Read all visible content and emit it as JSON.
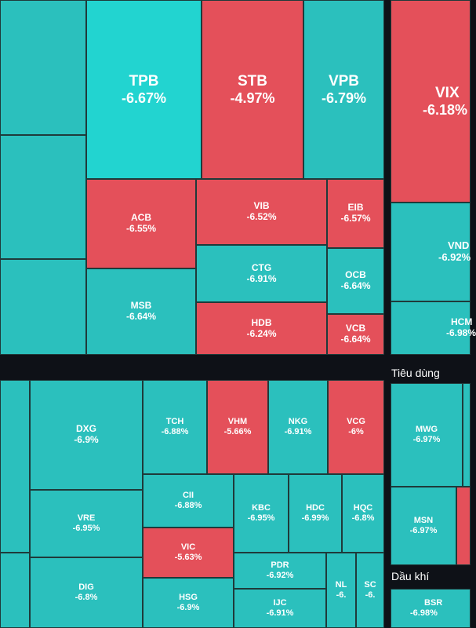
{
  "chart_data": {
    "type": "heatmap",
    "colors": {
      "down": "#e4505a",
      "floor": "#2bc0bd",
      "floor_highlight": "#22d4d0",
      "background": "#0e1117"
    },
    "sectors": [
      {
        "name": "",
        "tiles": [
          {
            "symbol": "TPB",
            "change": "-6.67%",
            "value": -6.67
          },
          {
            "symbol": "STB",
            "change": "-4.97%",
            "value": -4.97
          },
          {
            "symbol": "VPB",
            "change": "-6.79%",
            "value": -6.79
          },
          {
            "symbol": "ACB",
            "change": "-6.55%",
            "value": -6.55
          },
          {
            "symbol": "VIB",
            "change": "-6.52%",
            "value": -6.52
          },
          {
            "symbol": "EIB",
            "change": "-6.57%",
            "value": -6.57
          },
          {
            "symbol": "CTG",
            "change": "-6.91%",
            "value": -6.91
          },
          {
            "symbol": "OCB",
            "change": "-6.64%",
            "value": -6.64
          },
          {
            "symbol": "MSB",
            "change": "-6.64%",
            "value": -6.64
          },
          {
            "symbol": "HDB",
            "change": "-6.24%",
            "value": -6.24
          },
          {
            "symbol": "VCB",
            "change": "-6.64%",
            "value": -6.64
          }
        ]
      },
      {
        "name": "",
        "tiles": [
          {
            "symbol": "VIX",
            "change": "-6.18%",
            "value": -6.18
          },
          {
            "symbol": "VND",
            "change": "-6.92%",
            "value": -6.92
          },
          {
            "symbol": "HCM",
            "change": "-6.98%",
            "value": -6.98
          }
        ]
      },
      {
        "name": "",
        "tiles": [
          {
            "symbol": "DXG",
            "change": "-6.9%",
            "value": -6.9
          },
          {
            "symbol": "TCH",
            "change": "-6.88%",
            "value": -6.88
          },
          {
            "symbol": "VHM",
            "change": "-5.66%",
            "value": -5.66
          },
          {
            "symbol": "NKG",
            "change": "-6.91%",
            "value": -6.91
          },
          {
            "symbol": "VCG",
            "change": "-6%",
            "value": -6
          },
          {
            "symbol": "CII",
            "change": "-6.88%",
            "value": -6.88
          },
          {
            "symbol": "VRE",
            "change": "-6.95%",
            "value": -6.95
          },
          {
            "symbol": "KBC",
            "change": "-6.95%",
            "value": -6.95
          },
          {
            "symbol": "HDC",
            "change": "-6.99%",
            "value": -6.99
          },
          {
            "symbol": "HQC",
            "change": "-6.8%",
            "value": -6.8
          },
          {
            "symbol": "VIC",
            "change": "-5.63%",
            "value": -5.63
          },
          {
            "symbol": "DIG",
            "change": "-6.8%",
            "value": -6.8
          },
          {
            "symbol": "PDR",
            "change": "-6.92%",
            "value": -6.92
          },
          {
            "symbol": "HSG",
            "change": "-6.9%",
            "value": -6.9
          },
          {
            "symbol": "IJC",
            "change": "-6.91%",
            "value": -6.91
          },
          {
            "symbol": "NL",
            "change": "-6.",
            "value": null
          },
          {
            "symbol": "SC",
            "change": "-6.",
            "value": null
          }
        ]
      },
      {
        "name": "Tiêu dùng",
        "tiles": [
          {
            "symbol": "MWG",
            "change": "-6.97%",
            "value": -6.97
          },
          {
            "symbol": "MSN",
            "change": "-6.97%",
            "value": -6.97
          }
        ]
      },
      {
        "name": "Dầu khí",
        "tiles": [
          {
            "symbol": "BSR",
            "change": "-6.98%",
            "value": -6.98
          }
        ]
      }
    ]
  }
}
